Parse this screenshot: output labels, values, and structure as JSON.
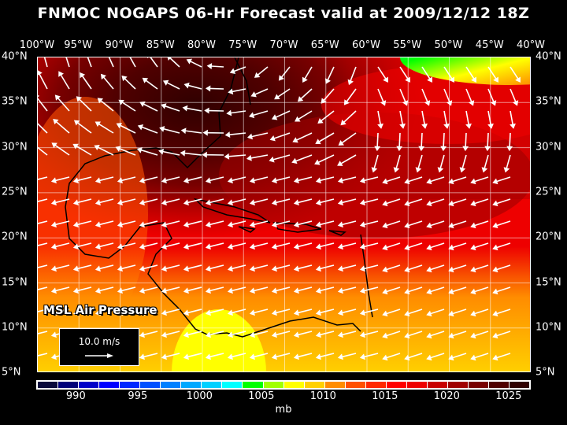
{
  "title": "FNMOC NOGAPS 06-Hr Forecast valid at 2009/12/12 18Z",
  "lon_labels": [
    "100°W",
    "95°W",
    "90°W",
    "85°W",
    "80°W",
    "75°W",
    "70°W",
    "65°W",
    "60°W",
    "55°W",
    "50°W",
    "45°W",
    "40°W"
  ],
  "lat_labels": [
    "40°N",
    "35°N",
    "30°N",
    "25°N",
    "20°N",
    "15°N",
    "10°N",
    "5°N"
  ],
  "field_label": "MSL Air Pressure",
  "reference_vector": "10.0 m/s",
  "colorbar": {
    "colors": [
      "#0a0a3c",
      "#00007a",
      "#0000c8",
      "#0000ff",
      "#0028ff",
      "#0050ff",
      "#0080ff",
      "#00a8ff",
      "#00d0ff",
      "#00ffff",
      "#00ff00",
      "#a0ff00",
      "#ffff00",
      "#ffd000",
      "#ff8c00",
      "#ff5000",
      "#ff2800",
      "#ff0000",
      "#ee0000",
      "#c80000",
      "#a00000",
      "#780000",
      "#500000",
      "#300000"
    ],
    "tick_labels": [
      "990",
      "995",
      "1000",
      "1005",
      "1010",
      "1015",
      "1020",
      "1025"
    ],
    "unit": "mb"
  }
}
